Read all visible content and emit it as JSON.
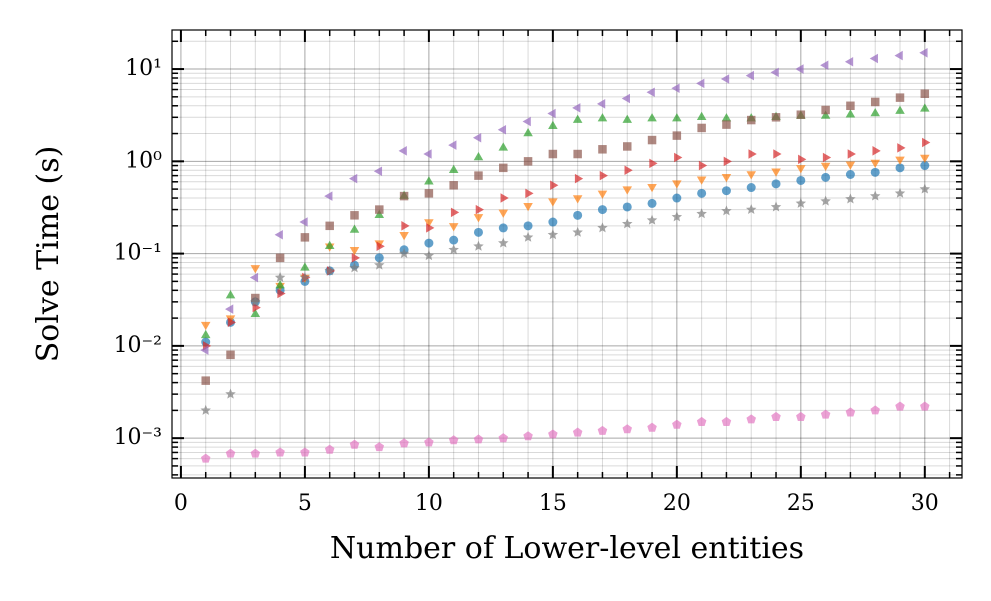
{
  "chart_data": {
    "type": "scatter",
    "xlabel": "Number of Lower-level entities",
    "ylabel": "Solve Time (s)",
    "log_y": true,
    "grid": true,
    "xlim": [
      -0.36,
      31.5
    ],
    "xticks": [
      0,
      5,
      10,
      15,
      20,
      25,
      30
    ],
    "xminorticks": [
      1,
      2,
      3,
      4,
      6,
      7,
      8,
      9,
      11,
      12,
      13,
      14,
      16,
      17,
      18,
      19,
      21,
      22,
      23,
      24,
      26,
      27,
      28,
      29,
      31
    ],
    "ylim": [
      0.00037,
      26.5
    ],
    "yticks": [
      {
        "value": 0.001,
        "label": "10⁻³"
      },
      {
        "value": 0.01,
        "label": "10⁻²"
      },
      {
        "value": 0.1,
        "label": "10⁻¹"
      },
      {
        "value": 1,
        "label": "10⁰"
      },
      {
        "value": 10,
        "label": "10¹"
      }
    ],
    "yminorticks": [
      0.0004,
      0.0005,
      0.0006,
      0.0007,
      0.0008,
      0.0009,
      0.002,
      0.003,
      0.004,
      0.005,
      0.006,
      0.007,
      0.008,
      0.009,
      0.02,
      0.03,
      0.04,
      0.05,
      0.06,
      0.07,
      0.08,
      0.09,
      0.2,
      0.3,
      0.4,
      0.5,
      0.6,
      0.7,
      0.8,
      0.9,
      2,
      3,
      4,
      5,
      6,
      7,
      8,
      9,
      20
    ],
    "x": [
      1,
      2,
      3,
      4,
      5,
      6,
      7,
      8,
      9,
      10,
      11,
      12,
      13,
      14,
      15,
      16,
      17,
      18,
      19,
      20,
      21,
      22,
      23,
      24,
      25,
      26,
      27,
      28,
      29,
      30
    ],
    "series": [
      {
        "color": "#1f77b4",
        "marker": "circle",
        "values": [
          0.011,
          0.018,
          0.03,
          0.04,
          0.05,
          0.065,
          0.075,
          0.09,
          0.11,
          0.13,
          0.14,
          0.17,
          0.19,
          0.2,
          0.22,
          0.26,
          0.3,
          0.32,
          0.35,
          0.4,
          0.45,
          0.48,
          0.52,
          0.57,
          0.62,
          0.67,
          0.72,
          0.76,
          0.85,
          0.9
        ]
      },
      {
        "color": "#ff7f0e",
        "marker": "down",
        "values": [
          0.017,
          0.02,
          0.07,
          0.045,
          0.055,
          0.12,
          0.11,
          0.13,
          0.16,
          0.22,
          0.2,
          0.25,
          0.28,
          0.33,
          0.37,
          0.4,
          0.45,
          0.5,
          0.53,
          0.58,
          0.64,
          0.68,
          0.73,
          0.78,
          0.85,
          0.9,
          0.93,
          0.97,
          1.05,
          1.1
        ]
      },
      {
        "color": "#2ca02c",
        "marker": "up",
        "values": [
          0.013,
          0.035,
          0.022,
          0.045,
          0.07,
          0.12,
          0.18,
          0.26,
          0.42,
          0.6,
          0.8,
          1.1,
          1.4,
          2.0,
          2.4,
          2.8,
          2.9,
          2.8,
          2.9,
          2.9,
          3.0,
          2.9,
          2.9,
          3.0,
          3.1,
          3.1,
          3.2,
          3.3,
          3.5,
          3.7
        ]
      },
      {
        "color": "#d62728",
        "marker": "right",
        "values": [
          0.01,
          0.018,
          0.026,
          0.037,
          0.055,
          0.065,
          0.09,
          0.12,
          0.2,
          0.19,
          0.28,
          0.3,
          0.4,
          0.45,
          0.55,
          0.65,
          0.7,
          0.8,
          0.95,
          1.1,
          0.9,
          1.0,
          1.2,
          1.2,
          1.05,
          1.1,
          1.2,
          1.3,
          1.4,
          1.6
        ]
      },
      {
        "color": "#9467bd",
        "marker": "left",
        "values": [
          0.009,
          0.025,
          0.055,
          0.16,
          0.22,
          0.42,
          0.65,
          0.78,
          1.3,
          1.2,
          1.5,
          1.8,
          2.2,
          2.7,
          3.3,
          3.8,
          4.2,
          4.8,
          5.6,
          6.2,
          7.0,
          7.8,
          8.5,
          9.2,
          10,
          11,
          12,
          13,
          14,
          15
        ]
      },
      {
        "color": "#8c564b",
        "marker": "square",
        "values": [
          0.0042,
          0.008,
          0.033,
          0.09,
          0.15,
          0.2,
          0.26,
          0.3,
          0.42,
          0.45,
          0.55,
          0.7,
          0.85,
          1.0,
          1.2,
          1.2,
          1.35,
          1.45,
          1.7,
          1.9,
          2.3,
          2.5,
          2.8,
          3.0,
          3.2,
          3.6,
          4.0,
          4.4,
          4.9,
          5.4
        ]
      },
      {
        "color": "#e377c2",
        "marker": "pentagon",
        "values": [
          0.0006,
          0.00068,
          0.00068,
          0.0007,
          0.0007,
          0.00075,
          0.00085,
          0.0008,
          0.00088,
          0.0009,
          0.00095,
          0.00097,
          0.001,
          0.00105,
          0.0011,
          0.00115,
          0.0012,
          0.00125,
          0.0013,
          0.0014,
          0.0015,
          0.0015,
          0.0016,
          0.0017,
          0.0017,
          0.0018,
          0.0019,
          0.002,
          0.0022,
          0.0022
        ]
      },
      {
        "color": "#7f7f7f",
        "marker": "star",
        "values": [
          0.002,
          0.003,
          0.03,
          0.055,
          0.055,
          0.065,
          0.07,
          0.075,
          0.1,
          0.095,
          0.11,
          0.12,
          0.13,
          0.15,
          0.16,
          0.17,
          0.19,
          0.21,
          0.23,
          0.25,
          0.27,
          0.29,
          0.3,
          0.32,
          0.35,
          0.37,
          0.39,
          0.42,
          0.45,
          0.5
        ]
      }
    ]
  }
}
